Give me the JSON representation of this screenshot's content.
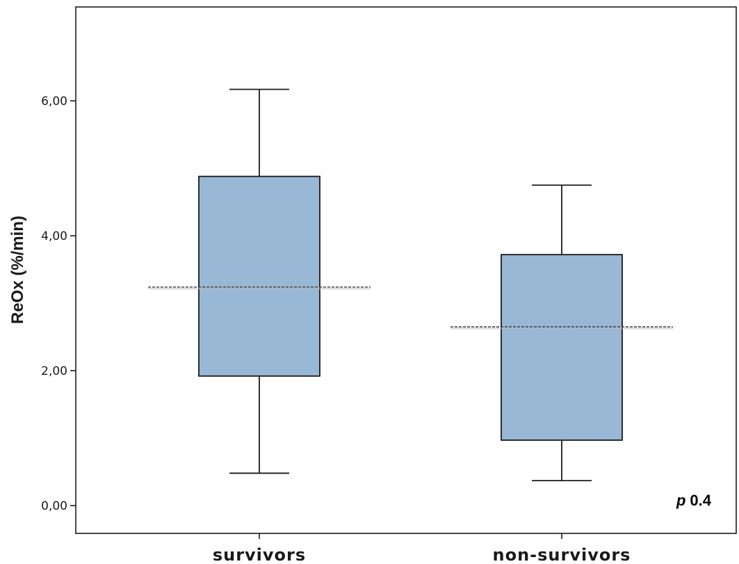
{
  "chart_data": {
    "type": "box",
    "ylabel": "ReOx (%/min)",
    "xlabel": "",
    "ylim": [
      -0.4,
      7.4
    ],
    "yticks": [
      0,
      2,
      4,
      6
    ],
    "ytick_labels": [
      "0,00",
      "2,00",
      "4,00",
      "6,00"
    ],
    "categories": [
      "survivors",
      "non-survivors"
    ],
    "boxes": [
      {
        "category": "survivors",
        "whisker_low": 0.48,
        "q1": 1.92,
        "q3": 4.88,
        "whisker_high": 6.17,
        "mean_line": 3.24
      },
      {
        "category": "non-survivors",
        "whisker_low": 0.37,
        "q1": 0.97,
        "q3": 3.72,
        "whisker_high": 4.75,
        "mean_line": 2.65
      }
    ],
    "annotation": {
      "italic": "p",
      "text": "0.4"
    },
    "colors": {
      "box_fill": "#98b8d6",
      "stroke": "#1a1a1a",
      "mean_line": "#333333"
    }
  }
}
